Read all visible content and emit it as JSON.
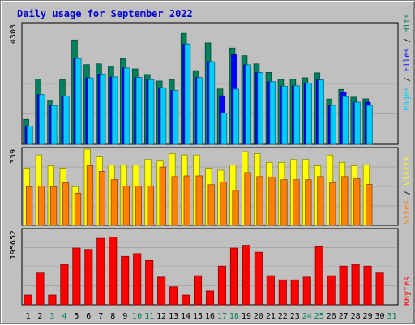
{
  "chart_data": {
    "type": "bar",
    "title": "Daily usage for September 2022",
    "categories": [
      "1",
      "2",
      "3",
      "4",
      "5",
      "6",
      "7",
      "8",
      "9",
      "10",
      "11",
      "12",
      "13",
      "14",
      "15",
      "16",
      "17",
      "18",
      "19",
      "20",
      "21",
      "22",
      "23",
      "24",
      "25",
      "26",
      "27",
      "28",
      "29",
      "30",
      "31"
    ],
    "weekend_days": [
      "3",
      "4",
      "10",
      "11",
      "17",
      "18",
      "24",
      "25",
      "31"
    ],
    "panels": [
      {
        "name": "hits-files-pages",
        "max_label": "4303",
        "ylim": [
          0,
          4303
        ],
        "series": [
          {
            "name": "Hits",
            "color": "#00805c",
            "values": [
              893,
              2340,
              1549,
              2311,
              3742,
              2856,
              2884,
              2808,
              3067,
              2703,
              2502,
              2267,
              2311,
              3976,
              2641,
              3637,
              1982,
              3452,
              3179,
              2884,
              2576,
              2333,
              2333,
              2384,
              2561,
              1621,
              1967,
              1689,
              1628,
              null,
              null
            ]
          },
          {
            "name": "Files",
            "color": "#0000ff",
            "values": [
              652,
              1781,
              1390,
              1724,
              3077,
              2378,
              2517,
              2415,
              2737,
              2397,
              2316,
              2026,
              1934,
              3599,
              2393,
              2965,
              1738,
              3213,
              2850,
              2569,
              2244,
              2083,
              2097,
              2197,
              2308,
              1394,
              1866,
              1509,
              1509,
              null,
              null
            ]
          },
          {
            "name": "Pages",
            "color": "#00ccff",
            "values": [
              652,
              1781,
              1390,
              1724,
              3077,
              2378,
              2517,
              2415,
              2737,
              2397,
              2316,
              2026,
              1934,
              3599,
              2393,
              2965,
              1117,
              1978,
              2850,
              2569,
              2244,
              2083,
              2097,
              2197,
              2308,
              1394,
              1705,
              1509,
              1394,
              null,
              null
            ]
          }
        ]
      },
      {
        "name": "visits-sites",
        "max_label": "339",
        "ylim": [
          0,
          339
        ],
        "series": [
          {
            "name": "Visits",
            "color": "#ffff00",
            "values": [
              254,
              313,
              265,
              254,
              172,
              339,
              305,
              268,
              268,
              268,
              293,
              286,
              319,
              313,
              313,
              254,
              245,
              268,
              328,
              319,
              280,
              280,
              293,
              293,
              265,
              313,
              280,
              265,
              268,
              null,
              null
            ]
          },
          {
            "name": "Sites",
            "color": "#ff8000",
            "values": [
              172,
              175,
              172,
              189,
              143,
              265,
              240,
              203,
              175,
              175,
              175,
              259,
              217,
              220,
              220,
              181,
              193,
              156,
              235,
              217,
              215,
              203,
              203,
              203,
              217,
              189,
              217,
              207,
              182,
              null,
              null
            ]
          }
        ]
      },
      {
        "name": "kbytes",
        "max_label": "195652",
        "ylim": [
          0,
          195652
        ],
        "series": [
          {
            "name": "KBytes",
            "color": "#ff0000",
            "values": [
              25410,
              83470,
              25410,
              105220,
              148740,
              145100,
              174090,
              177720,
              127000,
              134250,
              116130,
              72610,
              47220,
              25410,
              76240,
              36310,
              101580,
              148740,
              155990,
              137880,
              76240,
              65360,
              65360,
              72610,
              152370,
              76240,
              101580,
              105220,
              101580,
              83470,
              null
            ]
          }
        ]
      }
    ],
    "legend_right": {
      "top": [
        "Pages",
        "Files",
        "Hits"
      ],
      "middle": [
        "Sites",
        "Visits"
      ],
      "bottom": [
        "KBytes"
      ]
    }
  }
}
